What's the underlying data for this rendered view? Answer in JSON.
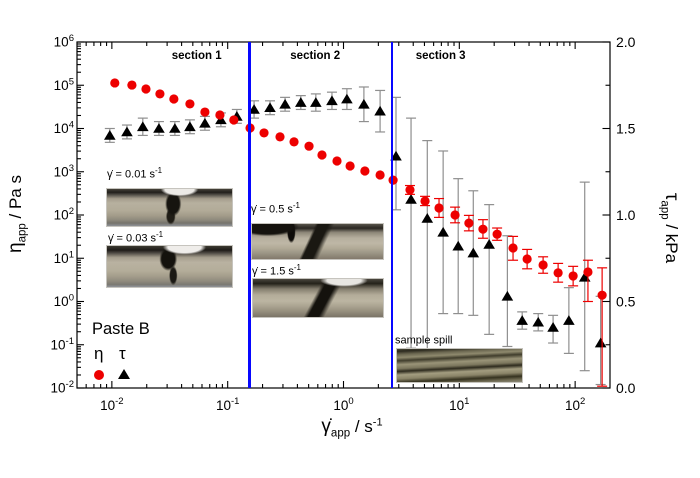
{
  "chart_data": {
    "type": "scatter",
    "title": "",
    "x_axis": {
      "sym": "γ̇",
      "sub": "app",
      "post": " / s",
      "post_sup": "-1",
      "scale": "log",
      "min": 0.005,
      "max": 200,
      "tick_base": "10",
      "tick_exponents": [
        -2,
        -1,
        0,
        1,
        2
      ]
    },
    "y_left": {
      "sym": "η",
      "sub": "app",
      "post": " / Pa s",
      "post_sup": "",
      "scale": "log",
      "min": 0.01,
      "max": 1000000,
      "tick_base": "10",
      "tick_exponents": [
        -2,
        -1,
        0,
        1,
        2,
        3,
        4,
        5,
        6
      ]
    },
    "y_right": {
      "sym": "τ",
      "sub": "app",
      "post": " / kPa",
      "post_sup": "",
      "scale": "linear",
      "min": 0,
      "max": 2,
      "tick_labels": [
        "0.0",
        "0.5",
        "1.0",
        "1.5",
        "2.0"
      ],
      "tick_values": [
        0,
        0.5,
        1,
        1.5,
        2
      ],
      "minor_values": [
        0.25,
        0.75,
        1.25,
        1.75
      ]
    },
    "sections": [
      {
        "label": "section 1",
        "center_x": 0.054
      },
      {
        "label": "section 2",
        "center_x": 0.57
      },
      {
        "label": "section 3",
        "center_x": 6.9
      }
    ],
    "section_lines": {
      "color": "#0808ff",
      "x_values": [
        0.155,
        2.62
      ]
    },
    "legend": {
      "title": "Paste B",
      "entries": [
        {
          "symbol": "η",
          "marker": "circle",
          "color": "#ed0000"
        },
        {
          "symbol": "τ",
          "marker": "triangle",
          "color": "#000000"
        }
      ]
    },
    "series": [
      {
        "name": "tau",
        "symbol": "τ",
        "axis": "right",
        "marker": "triangle",
        "color": "#000000",
        "error_color": "#8f8f8f",
        "points": [
          [
            0.0096,
            1.46,
            1.42,
            1.5
          ],
          [
            0.0135,
            1.48,
            1.44,
            1.52
          ],
          [
            0.0185,
            1.51,
            1.46,
            1.56
          ],
          [
            0.0255,
            1.5,
            1.46,
            1.54
          ],
          [
            0.035,
            1.5,
            1.46,
            1.54
          ],
          [
            0.0472,
            1.51,
            1.47,
            1.55
          ],
          [
            0.0636,
            1.53,
            1.49,
            1.57
          ],
          [
            0.0874,
            1.55,
            1.51,
            1.59
          ],
          [
            0.12,
            1.57,
            1.53,
            1.61
          ],
          [
            0.169,
            1.61,
            1.56,
            1.66
          ],
          [
            0.232,
            1.62,
            1.58,
            1.66
          ],
          [
            0.313,
            1.64,
            1.6,
            1.68
          ],
          [
            0.428,
            1.65,
            1.61,
            1.69
          ],
          [
            0.577,
            1.65,
            1.6,
            1.7
          ],
          [
            0.795,
            1.66,
            1.61,
            1.71
          ],
          [
            1.07,
            1.67,
            1.61,
            1.73
          ],
          [
            1.5,
            1.64,
            1.54,
            1.74
          ],
          [
            2.07,
            1.6,
            1.48,
            1.72
          ],
          [
            2.84,
            1.34,
            1.03,
            1.68
          ],
          [
            3.83,
            1.09,
            0.23,
            1.56
          ],
          [
            5.29,
            0.98,
            0.14,
            1.43
          ],
          [
            7.25,
            0.9,
            0.43,
            1.37
          ],
          [
            9.78,
            0.82,
            0.43,
            1.21
          ],
          [
            13.2,
            0.78,
            0.42,
            1.14
          ],
          [
            18.1,
            0.83,
            0.31,
            1.06
          ],
          [
            26,
            0.53,
            0.24,
            0.88
          ],
          [
            34.9,
            0.39,
            0.34,
            0.44
          ],
          [
            48,
            0.38,
            0.33,
            0.43
          ],
          [
            64.5,
            0.35,
            0.26,
            0.42
          ],
          [
            88.3,
            0.39,
            0.2,
            0.58
          ],
          [
            121,
            0.64,
            0.1,
            1.19
          ],
          [
            166,
            0.26,
            0.02,
            0.53
          ]
        ]
      },
      {
        "name": "eta",
        "symbol": "η",
        "axis": "left",
        "marker": "circle",
        "color": "#ed0000",
        "error_color": "#ed0000",
        "points": [
          [
            0.0106,
            113000
          ],
          [
            0.0149,
            101000
          ],
          [
            0.0197,
            82000
          ],
          [
            0.026,
            63000
          ],
          [
            0.0343,
            48000
          ],
          [
            0.0472,
            37000
          ],
          [
            0.0636,
            24000
          ],
          [
            0.0857,
            20500
          ],
          [
            0.113,
            15700
          ],
          [
            0.156,
            10300
          ],
          [
            0.206,
            7900
          ],
          [
            0.283,
            6400
          ],
          [
            0.374,
            4900
          ],
          [
            0.504,
            3900
          ],
          [
            0.652,
            2440
          ],
          [
            0.879,
            1770
          ],
          [
            1.14,
            1360
          ],
          [
            1.53,
            1040
          ],
          [
            2.07,
            840
          ],
          [
            2.68,
            640
          ],
          [
            3.75,
            380,
            300,
            480
          ],
          [
            5.06,
            210,
            165,
            270
          ],
          [
            6.68,
            145,
            88,
            240
          ],
          [
            9.19,
            100,
            66,
            152
          ],
          [
            12.1,
            65,
            43,
            98
          ],
          [
            16,
            47,
            29,
            78
          ],
          [
            21.2,
            36,
            26,
            50
          ],
          [
            29.1,
            17.3,
            9,
            32
          ],
          [
            38.5,
            9.6,
            5.7,
            16
          ],
          [
            52.9,
            7,
            4.5,
            10.8
          ],
          [
            71.3,
            4.6,
            2.8,
            7.6
          ],
          [
            96.1,
            3.9,
            2.3,
            6.5
          ],
          [
            129,
            4.8,
            1,
            9
          ],
          [
            171,
            1.4,
            0.011,
            6
          ]
        ]
      }
    ],
    "insets": [
      {
        "text": "γ̇ = 0.01 s",
        "sup": "-1"
      },
      {
        "text": "γ̇ = 0.03 s",
        "sup": "-1"
      },
      {
        "text": "γ̇ = 0.5 s",
        "sup": "-1"
      },
      {
        "text": "γ̇ = 1.5 s",
        "sup": "-1"
      },
      {
        "text": "sample spill",
        "sup": ""
      }
    ]
  }
}
